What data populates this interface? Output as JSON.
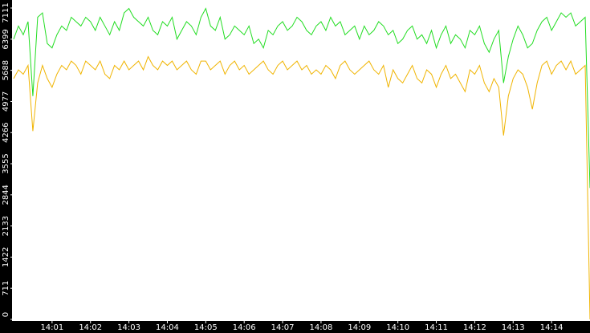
{
  "chart_data": {
    "type": "line",
    "xlim": [
      0,
      120
    ],
    "xticks": [
      {
        "value": 8,
        "label": "14:01"
      },
      {
        "value": 16,
        "label": "14:02"
      },
      {
        "value": 24,
        "label": "14:03"
      },
      {
        "value": 32,
        "label": "14:04"
      },
      {
        "value": 40,
        "label": "14:05"
      },
      {
        "value": 48,
        "label": "14:06"
      },
      {
        "value": 56,
        "label": "14:07"
      },
      {
        "value": 64,
        "label": "14:08"
      },
      {
        "value": 72,
        "label": "14:09"
      },
      {
        "value": 80,
        "label": "14:10"
      },
      {
        "value": 88,
        "label": "14:11"
      },
      {
        "value": 96,
        "label": "14:12"
      },
      {
        "value": 104,
        "label": "14:13"
      },
      {
        "value": 112,
        "label": "14:14"
      }
    ],
    "ylim": [
      0,
      7111
    ],
    "yticks": [
      0,
      711,
      1422,
      2133,
      2844,
      3555,
      4266,
      4977,
      5688,
      6399,
      7111
    ],
    "series": [
      {
        "color": "#22dd22",
        "values": [
          6400,
          6700,
          6500,
          6800,
          5100,
          6900,
          7000,
          6300,
          6200,
          6500,
          6700,
          6600,
          6900,
          6800,
          6700,
          6900,
          6800,
          6600,
          6900,
          6700,
          6500,
          6800,
          6600,
          7000,
          7100,
          6900,
          6800,
          6700,
          6900,
          6600,
          6500,
          6800,
          6700,
          6900,
          6400,
          6600,
          6800,
          6700,
          6500,
          6900,
          7100,
          6700,
          6600,
          6900,
          6400,
          6500,
          6700,
          6600,
          6500,
          6700,
          6300,
          6400,
          6200,
          6600,
          6500,
          6700,
          6800,
          6600,
          6700,
          6900,
          6800,
          6600,
          6500,
          6700,
          6800,
          6600,
          6900,
          6700,
          6800,
          6500,
          6600,
          6700,
          6400,
          6700,
          6500,
          6600,
          6800,
          6700,
          6500,
          6600,
          6300,
          6400,
          6600,
          6700,
          6400,
          6500,
          6300,
          6600,
          6200,
          6500,
          6700,
          6300,
          6500,
          6400,
          6200,
          6600,
          6500,
          6700,
          6300,
          6100,
          6400,
          6600,
          5400,
          6000,
          6400,
          6700,
          6500,
          6200,
          6300,
          6600,
          6800,
          6900,
          6600,
          6800,
          7000,
          6900,
          7000,
          6700,
          6800,
          6900,
          3000
        ]
      },
      {
        "color": "#f0b400",
        "values": [
          5500,
          5700,
          5600,
          5800,
          4300,
          5400,
          5800,
          5500,
          5300,
          5600,
          5800,
          5700,
          5900,
          5800,
          5600,
          5900,
          5800,
          5700,
          5900,
          5600,
          5500,
          5800,
          5700,
          5900,
          5700,
          5800,
          5900,
          5700,
          6000,
          5800,
          5700,
          5900,
          5800,
          5900,
          5700,
          5800,
          5900,
          5700,
          5600,
          5900,
          5900,
          5700,
          5800,
          5900,
          5600,
          5800,
          5900,
          5700,
          5800,
          5600,
          5700,
          5800,
          5900,
          5700,
          5600,
          5800,
          5900,
          5700,
          5800,
          5900,
          5700,
          5800,
          5600,
          5700,
          5600,
          5800,
          5700,
          5500,
          5800,
          5900,
          5700,
          5600,
          5700,
          5800,
          5900,
          5700,
          5600,
          5800,
          5300,
          5700,
          5500,
          5400,
          5600,
          5800,
          5500,
          5400,
          5700,
          5600,
          5300,
          5600,
          5800,
          5500,
          5600,
          5400,
          5200,
          5700,
          5600,
          5800,
          5400,
          5200,
          5500,
          5300,
          4200,
          5100,
          5500,
          5700,
          5600,
          5300,
          4800,
          5400,
          5800,
          5900,
          5600,
          5800,
          5900,
          5700,
          5900,
          5600,
          5700,
          5800,
          0
        ]
      }
    ]
  }
}
